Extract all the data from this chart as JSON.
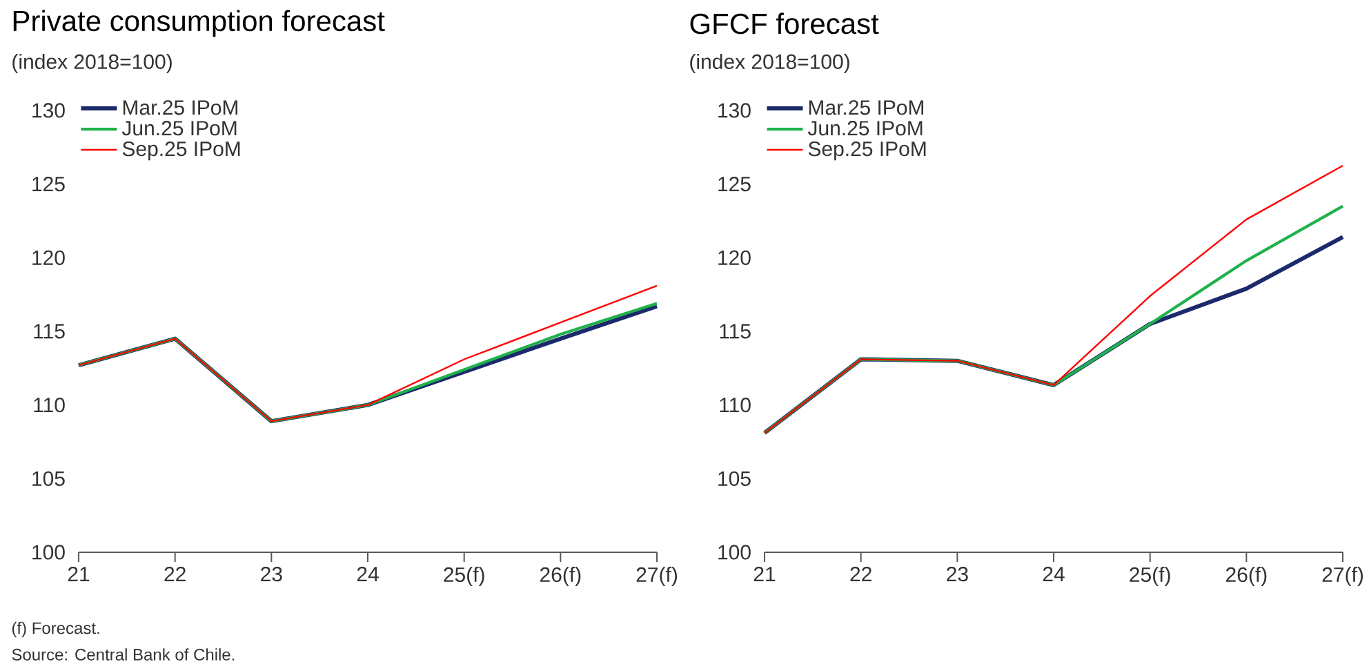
{
  "chart_data": [
    {
      "type": "line",
      "title": "Private consumption forecast",
      "subtitle": "(index 2018=100)",
      "categories": [
        "21",
        "22",
        "23",
        "24",
        "25(f)",
        "26(f)",
        "27(f)"
      ],
      "series": [
        {
          "name": "Mar.25 IPoM",
          "color": "#1b2a6b",
          "values": [
            112.7,
            114.5,
            108.9,
            110.0,
            112.25,
            114.5,
            116.7
          ]
        },
        {
          "name": "Jun.25 IPoM",
          "color": "#21b14c",
          "values": [
            112.7,
            114.5,
            108.9,
            110.0,
            112.4,
            114.8,
            116.9
          ]
        },
        {
          "name": "Sep.25 IPoM",
          "color": "#ff0000",
          "values": [
            112.7,
            114.5,
            108.9,
            110.0,
            113.1,
            115.6,
            118.1
          ]
        }
      ],
      "ylim": [
        100,
        130
      ],
      "yticks": [
        100,
        105,
        110,
        115,
        120,
        125,
        130
      ],
      "legend": "top left",
      "annotations": [
        "(f) Forecast.",
        "Source: Central Bank of Chile."
      ]
    },
    {
      "type": "line",
      "title": "GFCF forecast",
      "subtitle": "(index 2018=100)",
      "categories": [
        "21",
        "22",
        "23",
        "24",
        "25(f)",
        "26(f)",
        "27(f)"
      ],
      "series": [
        {
          "name": "Mar.25 IPoM",
          "color": "#1b2a6b",
          "values": [
            108.1,
            113.1,
            113.0,
            111.35,
            115.5,
            117.9,
            121.4
          ]
        },
        {
          "name": "Jun.25 IPoM",
          "color": "#21b14c",
          "values": [
            108.1,
            113.1,
            113.0,
            111.35,
            115.5,
            119.8,
            123.5
          ]
        },
        {
          "name": "Sep.25 IPoM",
          "color": "#ff0000",
          "values": [
            108.1,
            113.1,
            113.0,
            111.35,
            117.4,
            122.6,
            126.25
          ]
        }
      ],
      "ylim": [
        100,
        130
      ],
      "yticks": [
        100,
        105,
        110,
        115,
        120,
        125,
        130
      ],
      "legend": "top left"
    }
  ]
}
